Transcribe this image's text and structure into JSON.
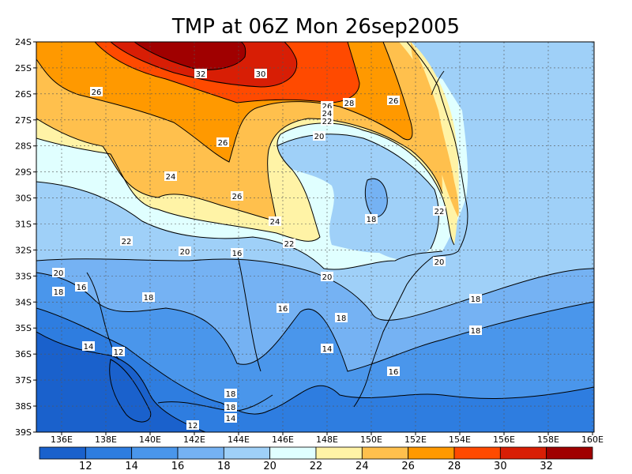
{
  "title": "TMP at 06Z Mon 26sep2005",
  "lat_labels": [
    "24S",
    "25S",
    "26S",
    "27S",
    "28S",
    "29S",
    "30S",
    "31S",
    "32S",
    "33S",
    "34S",
    "35S",
    "36S",
    "37S",
    "38S",
    "39S"
  ],
  "lon_labels": [
    "136E",
    "138E",
    "140E",
    "142E",
    "144E",
    "146E",
    "148E",
    "150E",
    "152E",
    "154E",
    "156E",
    "158E",
    "160E"
  ],
  "colorbar": {
    "ticks": [
      "12",
      "14",
      "16",
      "18",
      "20",
      "22",
      "24",
      "26",
      "28",
      "30",
      "32"
    ],
    "colors": [
      "#1a61cc",
      "#2e7de0",
      "#4a96eb",
      "#75b2f3",
      "#9fd0f8",
      "#e0ffff",
      "#fff3a6",
      "#ffc04d",
      "#ff9900",
      "#ff4a00",
      "#d81e05",
      "#a00000"
    ]
  },
  "contour_labels": [
    {
      "id": "l1",
      "text": "32"
    },
    {
      "id": "l2",
      "text": "30"
    },
    {
      "id": "l3",
      "text": "28"
    },
    {
      "id": "l4",
      "text": "26"
    },
    {
      "id": "l5",
      "text": "26"
    },
    {
      "id": "l6",
      "text": "26"
    },
    {
      "id": "l7",
      "text": "26"
    },
    {
      "id": "l8",
      "text": "26"
    },
    {
      "id": "l9",
      "text": "24"
    },
    {
      "id": "l10",
      "text": "22"
    },
    {
      "id": "l11",
      "text": "20"
    },
    {
      "id": "l12",
      "text": "24"
    },
    {
      "id": "l13",
      "text": "24"
    },
    {
      "id": "l14",
      "text": "22"
    },
    {
      "id": "l15",
      "text": "22"
    },
    {
      "id": "l16",
      "text": "22"
    },
    {
      "id": "l17",
      "text": "18"
    },
    {
      "id": "l18",
      "text": "20"
    },
    {
      "id": "l19",
      "text": "16"
    },
    {
      "id": "l20",
      "text": "20"
    },
    {
      "id": "l21",
      "text": "20"
    },
    {
      "id": "l22",
      "text": "20"
    },
    {
      "id": "l23",
      "text": "18"
    },
    {
      "id": "l24",
      "text": "16"
    },
    {
      "id": "l25",
      "text": "18"
    },
    {
      "id": "l26",
      "text": "18"
    },
    {
      "id": "l27",
      "text": "16"
    },
    {
      "id": "l28",
      "text": "18"
    },
    {
      "id": "l29",
      "text": "14"
    },
    {
      "id": "l30",
      "text": "12"
    },
    {
      "id": "l31",
      "text": "14"
    },
    {
      "id": "l32",
      "text": "16"
    },
    {
      "id": "l33",
      "text": "18"
    },
    {
      "id": "l34",
      "text": "18"
    },
    {
      "id": "l35",
      "text": "14"
    },
    {
      "id": "l36",
      "text": "12"
    },
    {
      "id": "l37",
      "text": "18"
    }
  ]
}
